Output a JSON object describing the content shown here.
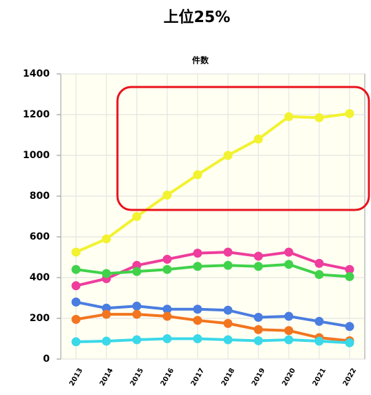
{
  "chart_data": {
    "type": "line",
    "title": "上位25%",
    "subtitle": "件数",
    "categories": [
      "2013",
      "2014",
      "2015",
      "2016",
      "2017",
      "2018",
      "2019",
      "2020",
      "2021",
      "2022"
    ],
    "series": [
      {
        "color": "#f2f230",
        "values": [
          525,
          590,
          700,
          805,
          905,
          1000,
          1080,
          1190,
          1185,
          1205
        ]
      },
      {
        "color": "#ee3d9c",
        "values": [
          360,
          395,
          460,
          490,
          520,
          525,
          505,
          525,
          470,
          440
        ]
      },
      {
        "color": "#3fd24a",
        "values": [
          440,
          420,
          430,
          440,
          455,
          460,
          455,
          465,
          415,
          405
        ]
      },
      {
        "color": "#4a7de0",
        "values": [
          280,
          250,
          260,
          245,
          245,
          240,
          205,
          210,
          185,
          160
        ]
      },
      {
        "color": "#f2751f",
        "values": [
          195,
          220,
          220,
          210,
          190,
          175,
          145,
          140,
          105,
          90
        ]
      },
      {
        "color": "#3ad8e8",
        "values": [
          85,
          88,
          95,
          100,
          100,
          95,
          90,
          95,
          88,
          80
        ]
      }
    ],
    "ylim": [
      0,
      1400
    ],
    "yticks": [
      0,
      200,
      400,
      600,
      800,
      1000,
      1200,
      1400
    ],
    "grid": true
  }
}
